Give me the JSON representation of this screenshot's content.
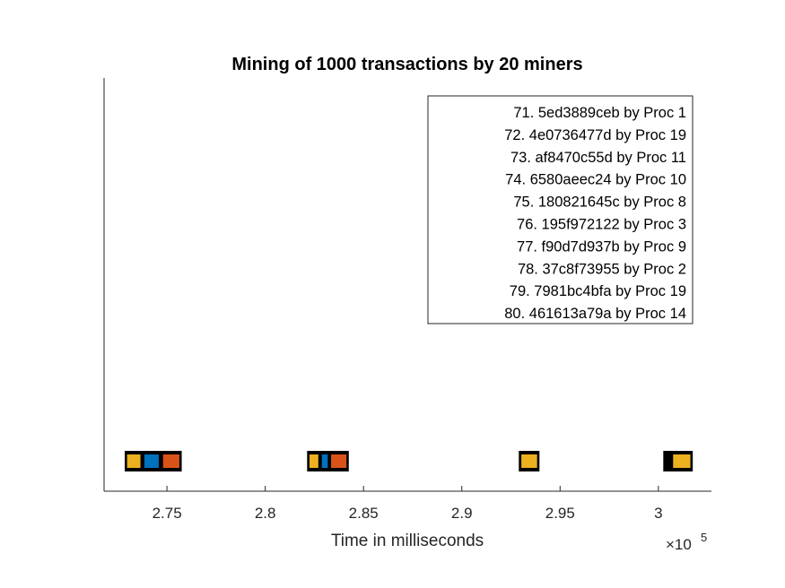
{
  "chart_data": {
    "type": "timeline",
    "title": "Mining of 1000 transactions by 20 miners",
    "xlabel": "Time in milliseconds",
    "x_exponent_base": "×10",
    "x_exponent_power": "5",
    "xlim": [
      2.718,
      3.027
    ],
    "x_ticks": [
      2.75,
      2.8,
      2.85,
      2.9,
      2.95,
      3.0
    ],
    "x_tick_labels": [
      "2.75",
      "2.8",
      "2.85",
      "2.9",
      "2.95",
      "3"
    ],
    "ylim": [
      0,
      1
    ],
    "blocks": [
      {
        "start": 2.7285,
        "end": 2.7575,
        "segments": [
          {
            "from": 2.7297,
            "to": 2.7365,
            "color": "#EDB120"
          },
          {
            "from": 2.7385,
            "to": 2.7458,
            "color": "#0072BD"
          },
          {
            "from": 2.748,
            "to": 2.7563,
            "color": "#D95319"
          }
        ]
      },
      {
        "start": 2.8213,
        "end": 2.8425,
        "segments": [
          {
            "from": 2.8225,
            "to": 2.827,
            "color": "#EDB120"
          },
          {
            "from": 2.8288,
            "to": 2.8318,
            "color": "#0072BD"
          },
          {
            "from": 2.8335,
            "to": 2.8413,
            "color": "#D95319"
          }
        ]
      },
      {
        "start": 2.929,
        "end": 2.9395,
        "segments": [
          {
            "from": 2.9303,
            "to": 2.9383,
            "color": "#EDB120"
          }
        ]
      },
      {
        "start": 3.0025,
        "end": 3.0175,
        "segments": [
          {
            "from": 3.0075,
            "to": 3.0163,
            "color": "#EDB120"
          }
        ]
      }
    ],
    "legend": {
      "placement": "top-right",
      "entries": [
        "71. 5ed3889ceb by Proc 1",
        "72. 4e0736477d by Proc 19",
        "73. af8470c55d by Proc 11",
        "74. 6580aeec24 by Proc 10",
        "75. 180821645c by Proc 8",
        "76. 195f972122 by Proc 3",
        "77. f90d7d937b by Proc 9",
        "78. 37c8f73955 by Proc 2",
        "79. 7981bc4bfa by Proc 19",
        "80. 461613a79a by Proc 14"
      ]
    },
    "grid": false
  }
}
